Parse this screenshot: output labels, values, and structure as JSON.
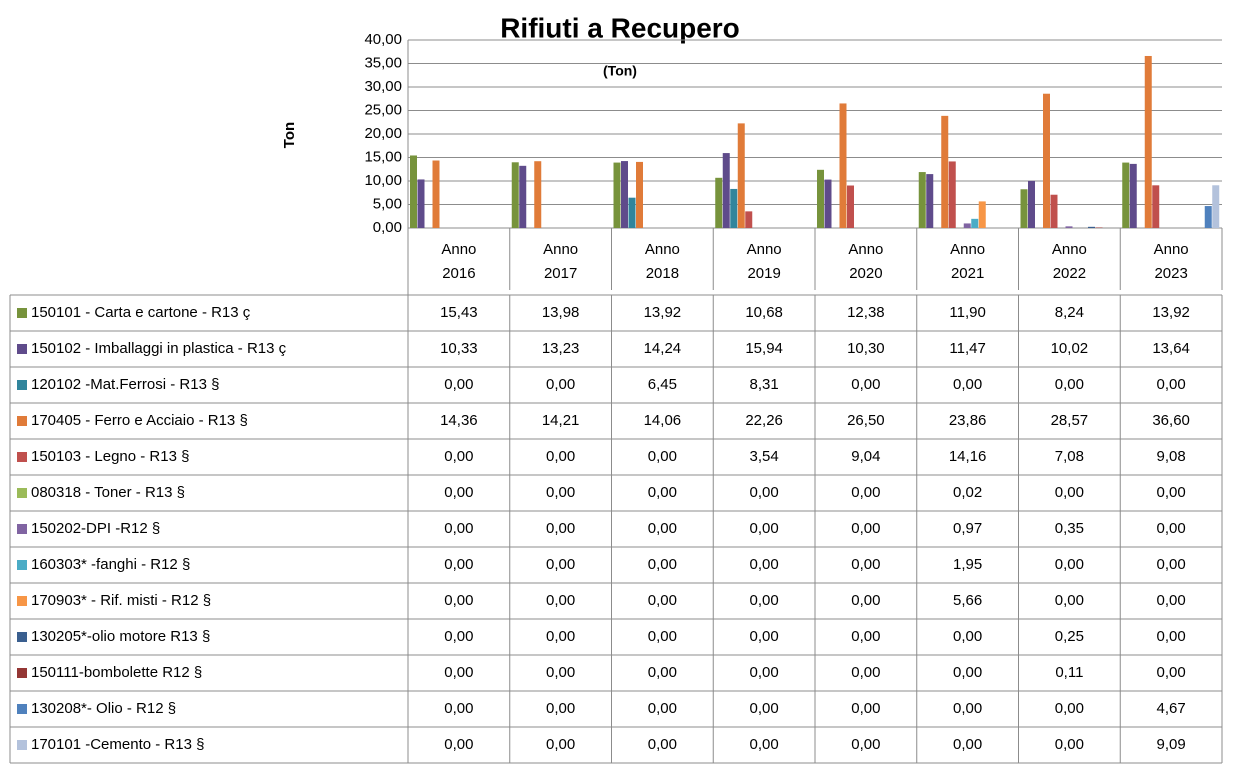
{
  "chart_data": {
    "type": "bar",
    "title": "Rifiuti a Recupero",
    "subtitle": "(Ton)",
    "y_label": "Ton",
    "categories": [
      "Anno 2016",
      "Anno 2017",
      "Anno 2018",
      "Anno 2019",
      "Anno 2020",
      "Anno 2021",
      "Anno 2022",
      "Anno 2023"
    ],
    "ylim": [
      0,
      40
    ],
    "yticks": [
      {
        "value": 0,
        "label": "0,00"
      },
      {
        "value": 5,
        "label": "5,00"
      },
      {
        "value": 10,
        "label": "10,00"
      },
      {
        "value": 15,
        "label": "15,00"
      },
      {
        "value": 20,
        "label": "20,00"
      },
      {
        "value": 25,
        "label": "25,00"
      },
      {
        "value": 30,
        "label": "30,00"
      },
      {
        "value": 35,
        "label": "35,00"
      },
      {
        "value": 40,
        "label": "40,00"
      }
    ],
    "grid": true,
    "series": [
      {
        "name": "150101 - Carta e cartone - R13 ç",
        "color": "#77933c",
        "values": [
          15.43,
          13.98,
          13.92,
          10.68,
          12.38,
          11.9,
          8.24,
          13.92
        ],
        "value_labels": [
          "15,43",
          "13,98",
          "13,92",
          "10,68",
          "12,38",
          "11,90",
          "8,24",
          "13,92"
        ]
      },
      {
        "name": "150102 - Imballaggi in plastica - R13 ç",
        "color": "#5f4b8b",
        "values": [
          10.33,
          13.23,
          14.24,
          15.94,
          10.3,
          11.47,
          10.02,
          13.64
        ],
        "value_labels": [
          "10,33",
          "13,23",
          "14,24",
          "15,94",
          "10,30",
          "11,47",
          "10,02",
          "13,64"
        ]
      },
      {
        "name": "120102 -Mat.Ferrosi - R13 §",
        "color": "#31859c",
        "values": [
          0,
          0,
          6.45,
          8.31,
          0,
          0,
          0,
          0
        ],
        "value_labels": [
          "0,00",
          "0,00",
          "6,45",
          "8,31",
          "0,00",
          "0,00",
          "0,00",
          "0,00"
        ]
      },
      {
        "name": "170405 - Ferro e Acciaio - R13 §",
        "color": "#e07b39",
        "values": [
          14.36,
          14.21,
          14.06,
          22.26,
          26.5,
          23.86,
          28.57,
          36.6
        ],
        "value_labels": [
          "14,36",
          "14,21",
          "14,06",
          "22,26",
          "26,50",
          "23,86",
          "28,57",
          "36,60"
        ]
      },
      {
        "name": "150103 - Legno - R13 §",
        "color": "#c0504d",
        "values": [
          0,
          0,
          0,
          3.54,
          9.04,
          14.16,
          7.08,
          9.08
        ],
        "value_labels": [
          "0,00",
          "0,00",
          "0,00",
          "3,54",
          "9,04",
          "14,16",
          "7,08",
          "9,08"
        ]
      },
      {
        "name": "080318 - Toner - R13 §",
        "color": "#9bbb59",
        "values": [
          0,
          0,
          0,
          0,
          0,
          0.02,
          0,
          0
        ],
        "value_labels": [
          "0,00",
          "0,00",
          "0,00",
          "0,00",
          "0,00",
          "0,02",
          "0,00",
          "0,00"
        ]
      },
      {
        "name": "150202-DPI -R12 §",
        "color": "#8064a2",
        "values": [
          0,
          0,
          0,
          0,
          0,
          0.97,
          0.35,
          0
        ],
        "value_labels": [
          "0,00",
          "0,00",
          "0,00",
          "0,00",
          "0,00",
          "0,97",
          "0,35",
          "0,00"
        ]
      },
      {
        "name": "160303* -fanghi  - R12 §",
        "color": "#4bacc6",
        "values": [
          0,
          0,
          0,
          0,
          0,
          1.95,
          0,
          0
        ],
        "value_labels": [
          "0,00",
          "0,00",
          "0,00",
          "0,00",
          "0,00",
          "1,95",
          "0,00",
          "0,00"
        ]
      },
      {
        "name": "170903* - Rif. misti - R12 §",
        "color": "#f79646",
        "values": [
          0,
          0,
          0,
          0,
          0,
          5.66,
          0,
          0
        ],
        "value_labels": [
          "0,00",
          "0,00",
          "0,00",
          "0,00",
          "0,00",
          "5,66",
          "0,00",
          "0,00"
        ]
      },
      {
        "name": "130205*-olio motore R13 §",
        "color": "#3a5f8f",
        "values": [
          0,
          0,
          0,
          0,
          0,
          0,
          0.25,
          0
        ],
        "value_labels": [
          "0,00",
          "0,00",
          "0,00",
          "0,00",
          "0,00",
          "0,00",
          "0,25",
          "0,00"
        ]
      },
      {
        "name": "150111-bombolette R12 §",
        "color": "#943634",
        "values": [
          0,
          0,
          0,
          0,
          0,
          0,
          0.11,
          0
        ],
        "value_labels": [
          "0,00",
          "0,00",
          "0,00",
          "0,00",
          "0,00",
          "0,00",
          "0,11",
          "0,00"
        ]
      },
      {
        "name": "130208*- Olio - R12 §",
        "color": "#4f81bd",
        "values": [
          0,
          0,
          0,
          0,
          0,
          0,
          0,
          4.67
        ],
        "value_labels": [
          "0,00",
          "0,00",
          "0,00",
          "0,00",
          "0,00",
          "0,00",
          "0,00",
          "4,67"
        ]
      },
      {
        "name": "170101 -Cemento - R13 §",
        "color": "#b3c2dc",
        "values": [
          0,
          0,
          0,
          0,
          0,
          0,
          0,
          9.09
        ],
        "value_labels": [
          "0,00",
          "0,00",
          "0,00",
          "0,00",
          "0,00",
          "0,00",
          "0,00",
          "9,09"
        ]
      }
    ]
  }
}
